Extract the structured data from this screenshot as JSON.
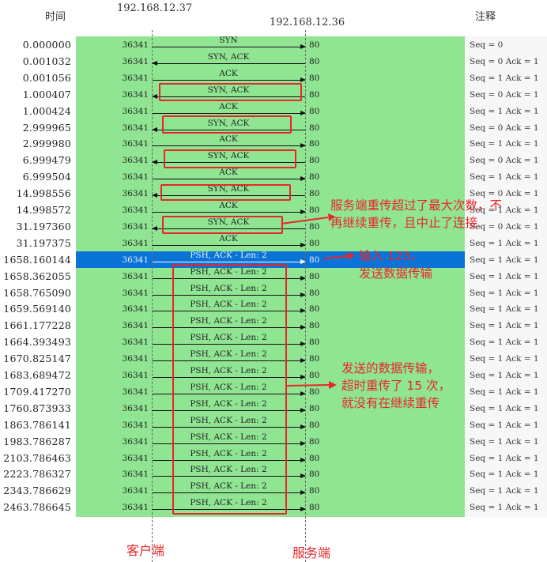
{
  "header": {
    "time": "时间",
    "ip_client": "192.168.12.37",
    "ip_server": "192.168.12.36",
    "note": "注释"
  },
  "colors": {
    "flow_bg": "#8fe592",
    "highlight": "#0a74d6",
    "annotation_red": "#e8262a"
  },
  "rows": [
    {
      "time": "0.000000",
      "src": "36341",
      "dst": "80",
      "label": "SYN",
      "dir": "right",
      "note": "Seq = 0"
    },
    {
      "time": "0.001032",
      "src": "36341",
      "dst": "80",
      "label": "SYN, ACK",
      "dir": "left",
      "note": "Seq = 0 Ack = 1"
    },
    {
      "time": "0.001056",
      "src": "36341",
      "dst": "80",
      "label": "ACK",
      "dir": "right",
      "note": "Seq = 1 Ack = 1"
    },
    {
      "time": "1.000407",
      "src": "36341",
      "dst": "80",
      "label": "SYN, ACK",
      "dir": "left",
      "note": "Seq = 0 Ack = 1"
    },
    {
      "time": "1.000424",
      "src": "36341",
      "dst": "80",
      "label": "ACK",
      "dir": "right",
      "note": "Seq = 1 Ack = 1"
    },
    {
      "time": "2.999965",
      "src": "36341",
      "dst": "80",
      "label": "SYN, ACK",
      "dir": "left",
      "note": "Seq = 0 Ack = 1"
    },
    {
      "time": "2.999980",
      "src": "36341",
      "dst": "80",
      "label": "ACK",
      "dir": "right",
      "note": "Seq = 1 Ack = 1"
    },
    {
      "time": "6.999479",
      "src": "36341",
      "dst": "80",
      "label": "SYN, ACK",
      "dir": "left",
      "note": "Seq = 0 Ack = 1"
    },
    {
      "time": "6.999504",
      "src": "36341",
      "dst": "80",
      "label": "ACK",
      "dir": "right",
      "note": "Seq = 1 Ack = 1"
    },
    {
      "time": "14.998556",
      "src": "36341",
      "dst": "80",
      "label": "SYN, ACK",
      "dir": "left",
      "note": "Seq = 0 Ack = 1"
    },
    {
      "time": "14.998572",
      "src": "36341",
      "dst": "80",
      "label": "ACK",
      "dir": "right",
      "note": "Seq = 1 Ack = 1"
    },
    {
      "time": "31.197360",
      "src": "36341",
      "dst": "80",
      "label": "SYN, ACK",
      "dir": "left",
      "note": "Seq = 0 Ack = 1"
    },
    {
      "time": "31.197375",
      "src": "36341",
      "dst": "80",
      "label": "ACK",
      "dir": "right",
      "note": "Seq = 1 Ack = 1"
    },
    {
      "time": "1658.160144",
      "src": "36341",
      "dst": "80",
      "label": "PSH, ACK - Len: 2",
      "dir": "right",
      "note": "Seq = 1 Ack = 1",
      "highlight": true
    },
    {
      "time": "1658.362055",
      "src": "36341",
      "dst": "80",
      "label": "PSH, ACK - Len: 2",
      "dir": "right",
      "note": "Seq = 1 Ack = 1"
    },
    {
      "time": "1658.765090",
      "src": "36341",
      "dst": "80",
      "label": "PSH, ACK - Len: 2",
      "dir": "right",
      "note": "Seq = 1 Ack = 1"
    },
    {
      "time": "1659.569140",
      "src": "36341",
      "dst": "80",
      "label": "PSH, ACK - Len: 2",
      "dir": "right",
      "note": "Seq = 1 Ack = 1"
    },
    {
      "time": "1661.177228",
      "src": "36341",
      "dst": "80",
      "label": "PSH, ACK - Len: 2",
      "dir": "right",
      "note": "Seq = 1 Ack = 1"
    },
    {
      "time": "1664.393493",
      "src": "36341",
      "dst": "80",
      "label": "PSH, ACK - Len: 2",
      "dir": "right",
      "note": "Seq = 1 Ack = 1"
    },
    {
      "time": "1670.825147",
      "src": "36341",
      "dst": "80",
      "label": "PSH, ACK - Len: 2",
      "dir": "right",
      "note": "Seq = 1 Ack = 1"
    },
    {
      "time": "1683.689472",
      "src": "36341",
      "dst": "80",
      "label": "PSH, ACK - Len: 2",
      "dir": "right",
      "note": "Seq = 1 Ack = 1"
    },
    {
      "time": "1709.417270",
      "src": "36341",
      "dst": "80",
      "label": "PSH, ACK - Len: 2",
      "dir": "right",
      "note": "Seq = 1 Ack = 1"
    },
    {
      "time": "1760.873933",
      "src": "36341",
      "dst": "80",
      "label": "PSH, ACK - Len: 2",
      "dir": "right",
      "note": "Seq = 1 Ack = 1"
    },
    {
      "time": "1863.786141",
      "src": "36341",
      "dst": "80",
      "label": "PSH, ACK - Len: 2",
      "dir": "right",
      "note": "Seq = 1 Ack = 1"
    },
    {
      "time": "1983.786287",
      "src": "36341",
      "dst": "80",
      "label": "PSH, ACK - Len: 2",
      "dir": "right",
      "note": "Seq = 1 Ack = 1"
    },
    {
      "time": "2103.786463",
      "src": "36341",
      "dst": "80",
      "label": "PSH, ACK - Len: 2",
      "dir": "right",
      "note": "Seq = 1 Ack = 1"
    },
    {
      "time": "2223.786327",
      "src": "36341",
      "dst": "80",
      "label": "PSH, ACK - Len: 2",
      "dir": "right",
      "note": "Seq = 1 Ack = 1"
    },
    {
      "time": "2343.786629",
      "src": "36341",
      "dst": "80",
      "label": "PSH, ACK - Len: 2",
      "dir": "right",
      "note": "Seq = 1 Ack = 1"
    },
    {
      "time": "2463.786645",
      "src": "36341",
      "dst": "80",
      "label": "PSH, ACK - Len: 2",
      "dir": "right",
      "note": "Seq = 1 Ack = 1"
    }
  ],
  "annotations": {
    "server_retrans": [
      "服务端重传超过了最大次数，不",
      "再继续重传，且中止了连接"
    ],
    "input": [
      "输入 123，",
      "发送数据传输"
    ],
    "data_retrans": [
      "发送的数据传输，",
      "超时重传了 15 次，",
      "就没有在继续重传"
    ]
  },
  "footer": {
    "client": "客户端",
    "server": "服务端"
  }
}
